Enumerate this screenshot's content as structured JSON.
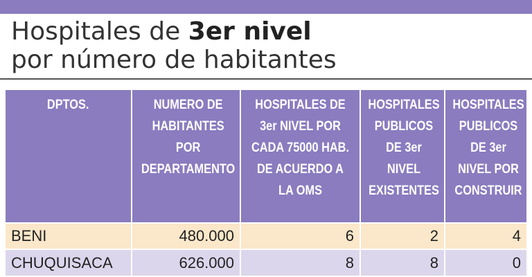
{
  "title": {
    "line1_prefix": "Hospitales de ",
    "line1_bold": "3er nivel",
    "line2": "por número de habitantes"
  },
  "table": {
    "headers": [
      "DPTOS.",
      "NUMERO DE HABITANTES POR DEPARTAMENTO",
      "HOSPITALES DE 3er NIVEL POR CADA 75000 HAB. DE ACUERDO A LA OMS",
      "HOSPITALES PUBLICOS DE 3er NIVEL EXISTENTES",
      "HOSPITALES PUBLICOS DE 3er NIVEL POR CONSTRUIR"
    ],
    "rows": [
      [
        "BENI",
        "480.000",
        "6",
        "2",
        "4"
      ],
      [
        "CHUQUISACA",
        "626.000",
        "8",
        "8",
        "0"
      ]
    ]
  },
  "colors": {
    "header_purple": "#8a7cbf",
    "row_peach": "#fbe7c9",
    "row_lavender": "#dcd6ec"
  }
}
